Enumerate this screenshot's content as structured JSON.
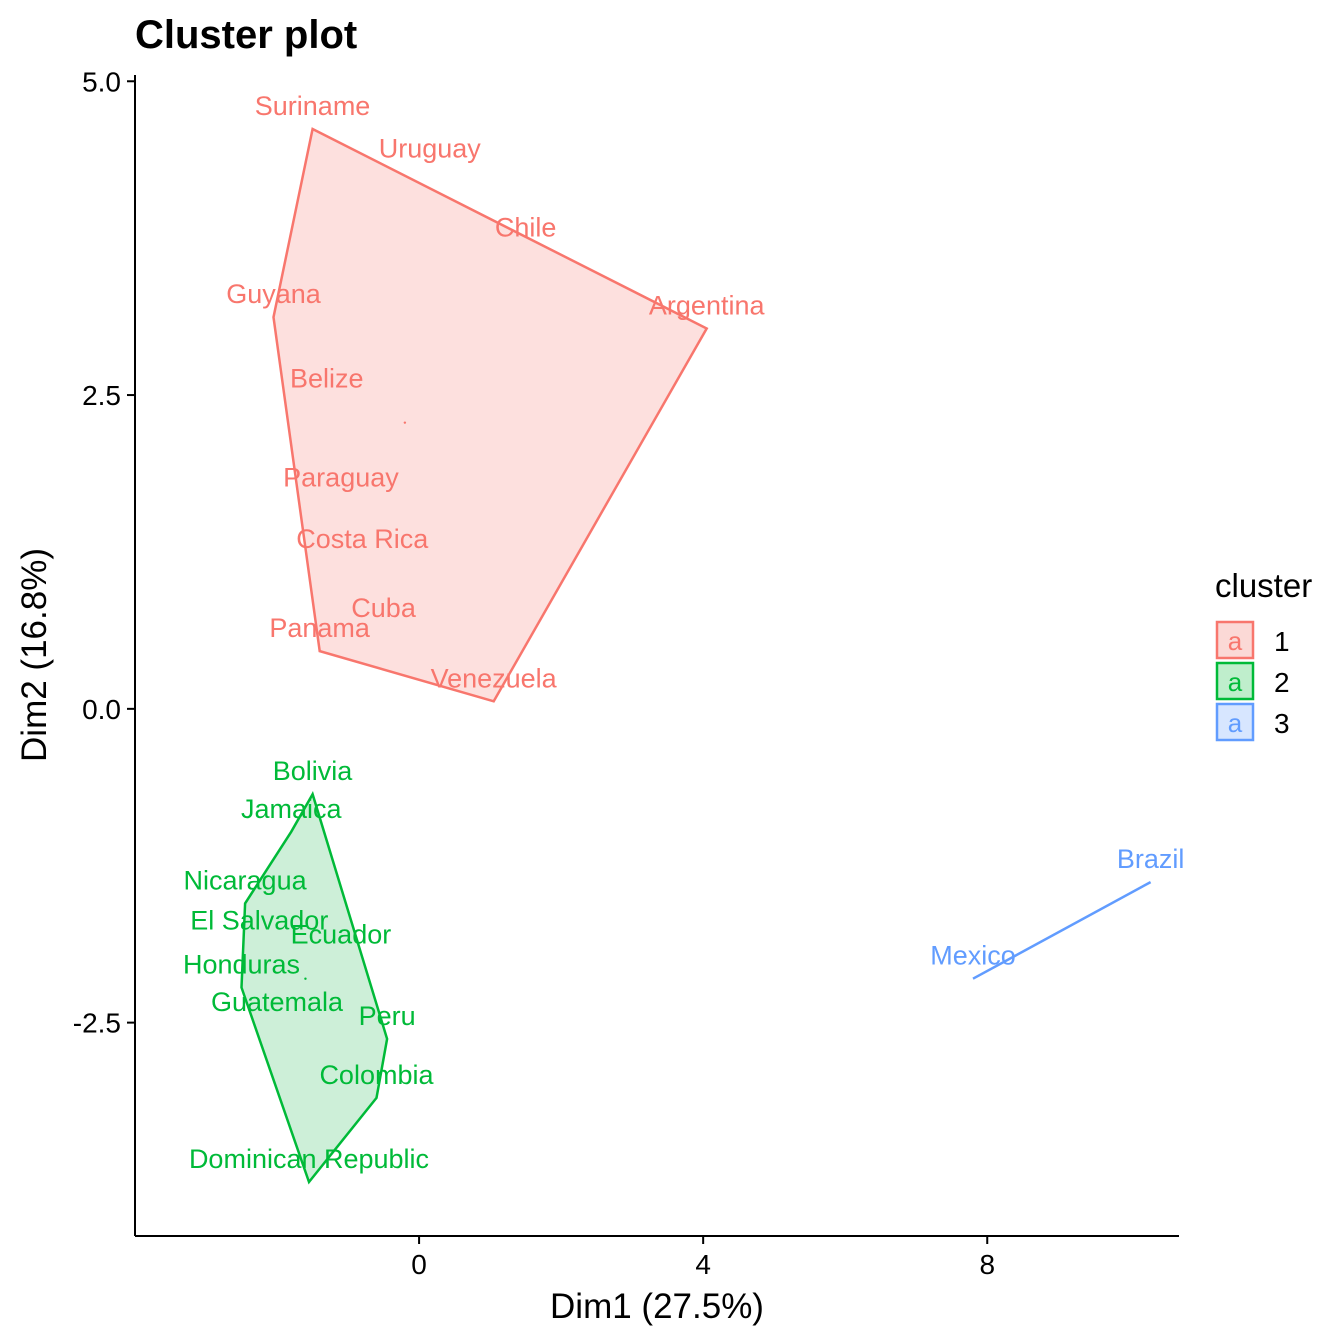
{
  "chart_data": {
    "type": "scatter",
    "title": "Cluster plot",
    "xlabel": "Dim1 (27.5%)",
    "ylabel": "Dim2 (16.8%)",
    "xlim": [
      -4.0,
      10.7
    ],
    "ylim": [
      -4.2,
      5.05
    ],
    "x_ticks": [
      {
        "value": 0,
        "label": "0"
      },
      {
        "value": 4,
        "label": "4"
      },
      {
        "value": 8,
        "label": "8"
      }
    ],
    "y_ticks": [
      {
        "value": 5.0,
        "label": "5.0"
      },
      {
        "value": 2.5,
        "label": "2.5"
      },
      {
        "value": 0.0,
        "label": "0.0"
      },
      {
        "value": -2.5,
        "label": "-2.5"
      }
    ],
    "grid": false,
    "legend": {
      "title": "cluster",
      "position": "right",
      "key_glyph": "a",
      "entries": [
        {
          "label": "1",
          "color": "#F8766D",
          "fill": "#FBD9D6"
        },
        {
          "label": "2",
          "color": "#00BA38",
          "fill": "#BFEECC"
        },
        {
          "label": "3",
          "color": "#619CFF",
          "fill": "#D7E6FF"
        }
      ]
    },
    "series": [
      {
        "name": "1",
        "color": "#F8766D",
        "fill": "#FDE0DE",
        "hull": [
          "Suriname",
          "Argentina",
          "Venezuela",
          "Panama",
          "Guyana"
        ],
        "center": [
          -0.2,
          2.28
        ],
        "points": [
          {
            "label": "Suriname",
            "x": -1.5,
            "y": 4.62
          },
          {
            "label": "Uruguay",
            "x": 0.15,
            "y": 4.28
          },
          {
            "label": "Chile",
            "x": 1.5,
            "y": 3.65
          },
          {
            "label": "Argentina",
            "x": 4.05,
            "y": 3.03
          },
          {
            "label": "Guyana",
            "x": -2.05,
            "y": 3.12
          },
          {
            "label": "Belize",
            "x": -1.3,
            "y": 2.45
          },
          {
            "label": "Paraguay",
            "x": -1.1,
            "y": 1.66
          },
          {
            "label": "Costa Rica",
            "x": -0.8,
            "y": 1.17
          },
          {
            "label": "Cuba",
            "x": -0.5,
            "y": 0.62
          },
          {
            "label": "Panama",
            "x": -1.4,
            "y": 0.46
          },
          {
            "label": "Venezuela",
            "x": 1.05,
            "y": 0.06
          }
        ]
      },
      {
        "name": "2",
        "color": "#00BA38",
        "fill": "#CDEFD8",
        "hull": [
          "Bolivia",
          "Jamaica",
          "Nicaragua",
          "Honduras",
          "Dominican Republic",
          "Colombia",
          "Peru"
        ],
        "center": [
          -1.6,
          -2.15
        ],
        "points": [
          {
            "label": "Bolivia",
            "x": -1.5,
            "y": -0.68
          },
          {
            "label": "Jamaica",
            "x": -1.8,
            "y": -0.98
          },
          {
            "label": "Nicaragua",
            "x": -2.45,
            "y": -1.55
          },
          {
            "label": "El Salvador",
            "x": -2.25,
            "y": -1.87
          },
          {
            "label": "Ecuador",
            "x": -1.1,
            "y": -1.98
          },
          {
            "label": "Honduras",
            "x": -2.5,
            "y": -2.22
          },
          {
            "label": "Guatemala",
            "x": -2.0,
            "y": -2.52
          },
          {
            "label": "Peru",
            "x": -0.45,
            "y": -2.63
          },
          {
            "label": "Colombia",
            "x": -0.6,
            "y": -3.1
          },
          {
            "label": "Dominican Republic",
            "x": -1.55,
            "y": -3.77
          }
        ]
      },
      {
        "name": "3",
        "color": "#619CFF",
        "fill": "#D7E6FF",
        "hull": [
          "Mexico",
          "Brazil"
        ],
        "points": [
          {
            "label": "Brazil",
            "x": 10.3,
            "y": -1.38
          },
          {
            "label": "Mexico",
            "x": 7.8,
            "y": -2.15
          }
        ]
      }
    ]
  }
}
